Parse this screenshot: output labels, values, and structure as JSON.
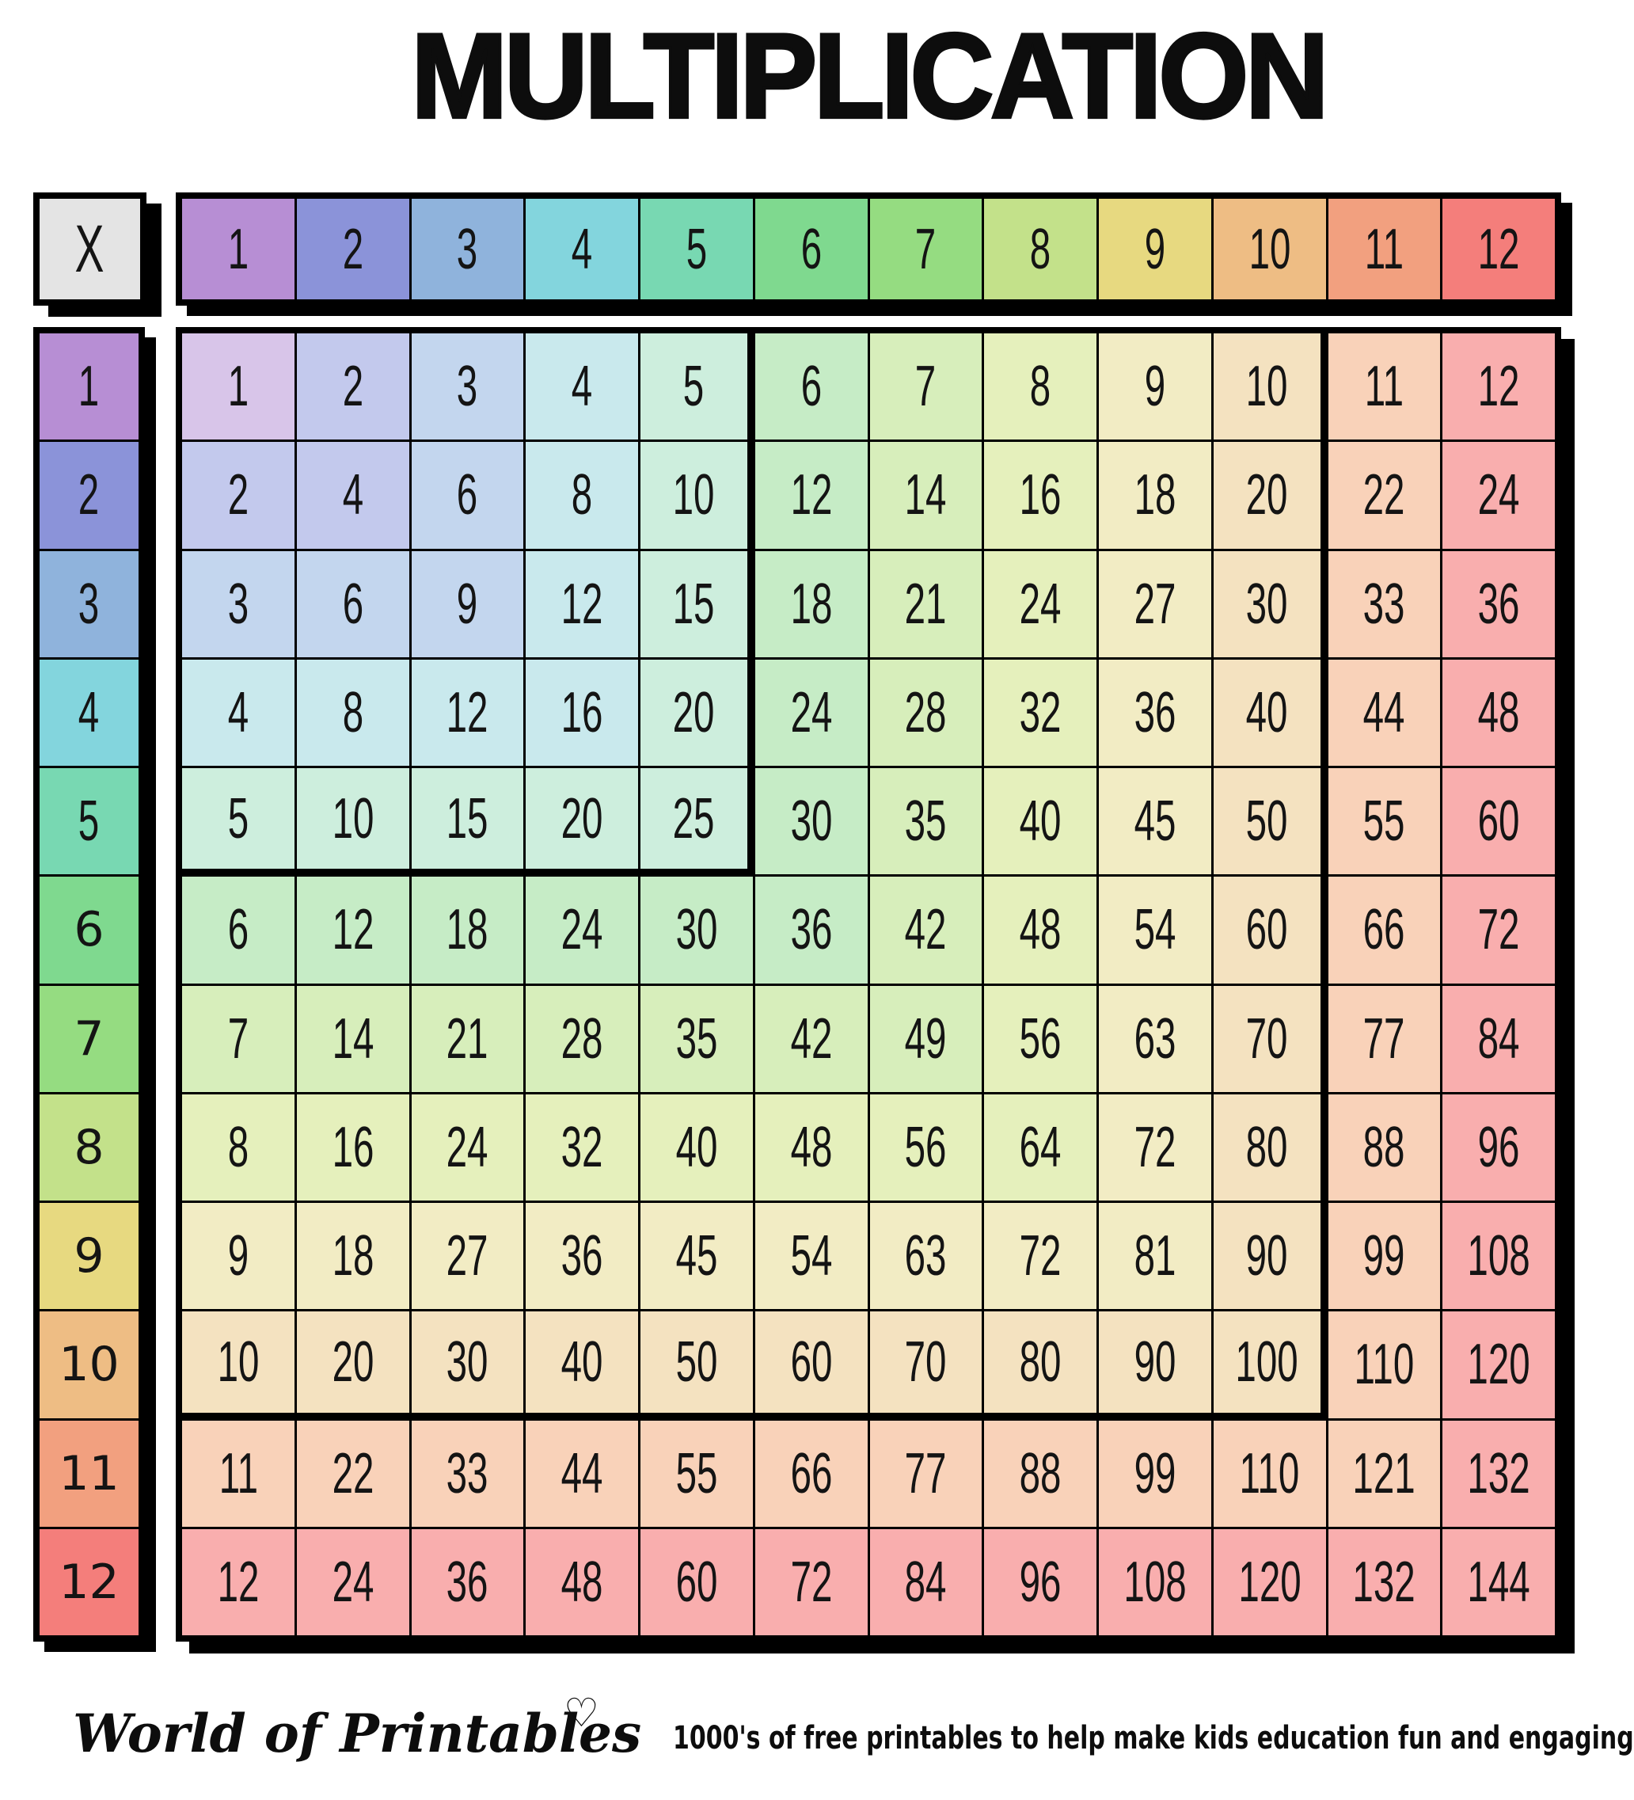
{
  "title": "MULTIPLICATION",
  "table": {
    "corner_label": "X",
    "column_headers": [
      "1",
      "2",
      "3",
      "4",
      "5",
      "6",
      "7",
      "8",
      "9",
      "10",
      "11",
      "12"
    ],
    "row_headers": [
      "1",
      "2",
      "3",
      "4",
      "5",
      "6",
      "7",
      "8",
      "9",
      "10",
      "11",
      "12"
    ],
    "cells": [
      [
        1,
        2,
        3,
        4,
        5,
        6,
        7,
        8,
        9,
        10,
        11,
        12
      ],
      [
        2,
        4,
        6,
        8,
        10,
        12,
        14,
        16,
        18,
        20,
        22,
        24
      ],
      [
        3,
        6,
        9,
        12,
        15,
        18,
        21,
        24,
        27,
        30,
        33,
        36
      ],
      [
        4,
        8,
        12,
        16,
        20,
        24,
        28,
        32,
        36,
        40,
        44,
        48
      ],
      [
        5,
        10,
        15,
        20,
        25,
        30,
        35,
        40,
        45,
        50,
        55,
        60
      ],
      [
        6,
        12,
        18,
        24,
        30,
        36,
        42,
        48,
        54,
        60,
        66,
        72
      ],
      [
        7,
        14,
        21,
        28,
        35,
        42,
        49,
        56,
        63,
        70,
        77,
        84
      ],
      [
        8,
        16,
        24,
        32,
        40,
        48,
        56,
        64,
        72,
        80,
        88,
        96
      ],
      [
        9,
        18,
        27,
        36,
        45,
        54,
        63,
        72,
        81,
        90,
        99,
        108
      ],
      [
        10,
        20,
        30,
        40,
        50,
        60,
        70,
        80,
        90,
        100,
        110,
        120
      ],
      [
        11,
        22,
        33,
        44,
        55,
        66,
        77,
        88,
        99,
        110,
        121,
        132
      ],
      [
        12,
        24,
        36,
        48,
        60,
        72,
        84,
        96,
        108,
        120,
        132,
        144
      ]
    ]
  },
  "colors": {
    "page_bg": "#ffffff",
    "border": "#000000",
    "text": "#141414",
    "corner_bg": "#e4e4e4",
    "header_colors": [
      "#b78ed4",
      "#8b93d9",
      "#8fb3dc",
      "#83d5dd",
      "#78d8b2",
      "#7fd98f",
      "#95dc81",
      "#c3e18a",
      "#e7d980",
      "#eebd84",
      "#f2a07f",
      "#f47e7b"
    ],
    "band_colors": [
      "#d8c5e9",
      "#c3c9ed",
      "#c3d6ee",
      "#c9e9ed",
      "#cdeedd",
      "#c6ecc6",
      "#d7eebb",
      "#e5f0bc",
      "#f2ecc4",
      "#f4e2c0",
      "#f9d2b9",
      "#f9aeae"
    ]
  },
  "footer": {
    "brand": "World of Printables",
    "heart": "♡",
    "tagline": "1000's of free printables to help make kids education fun and engaging"
  }
}
